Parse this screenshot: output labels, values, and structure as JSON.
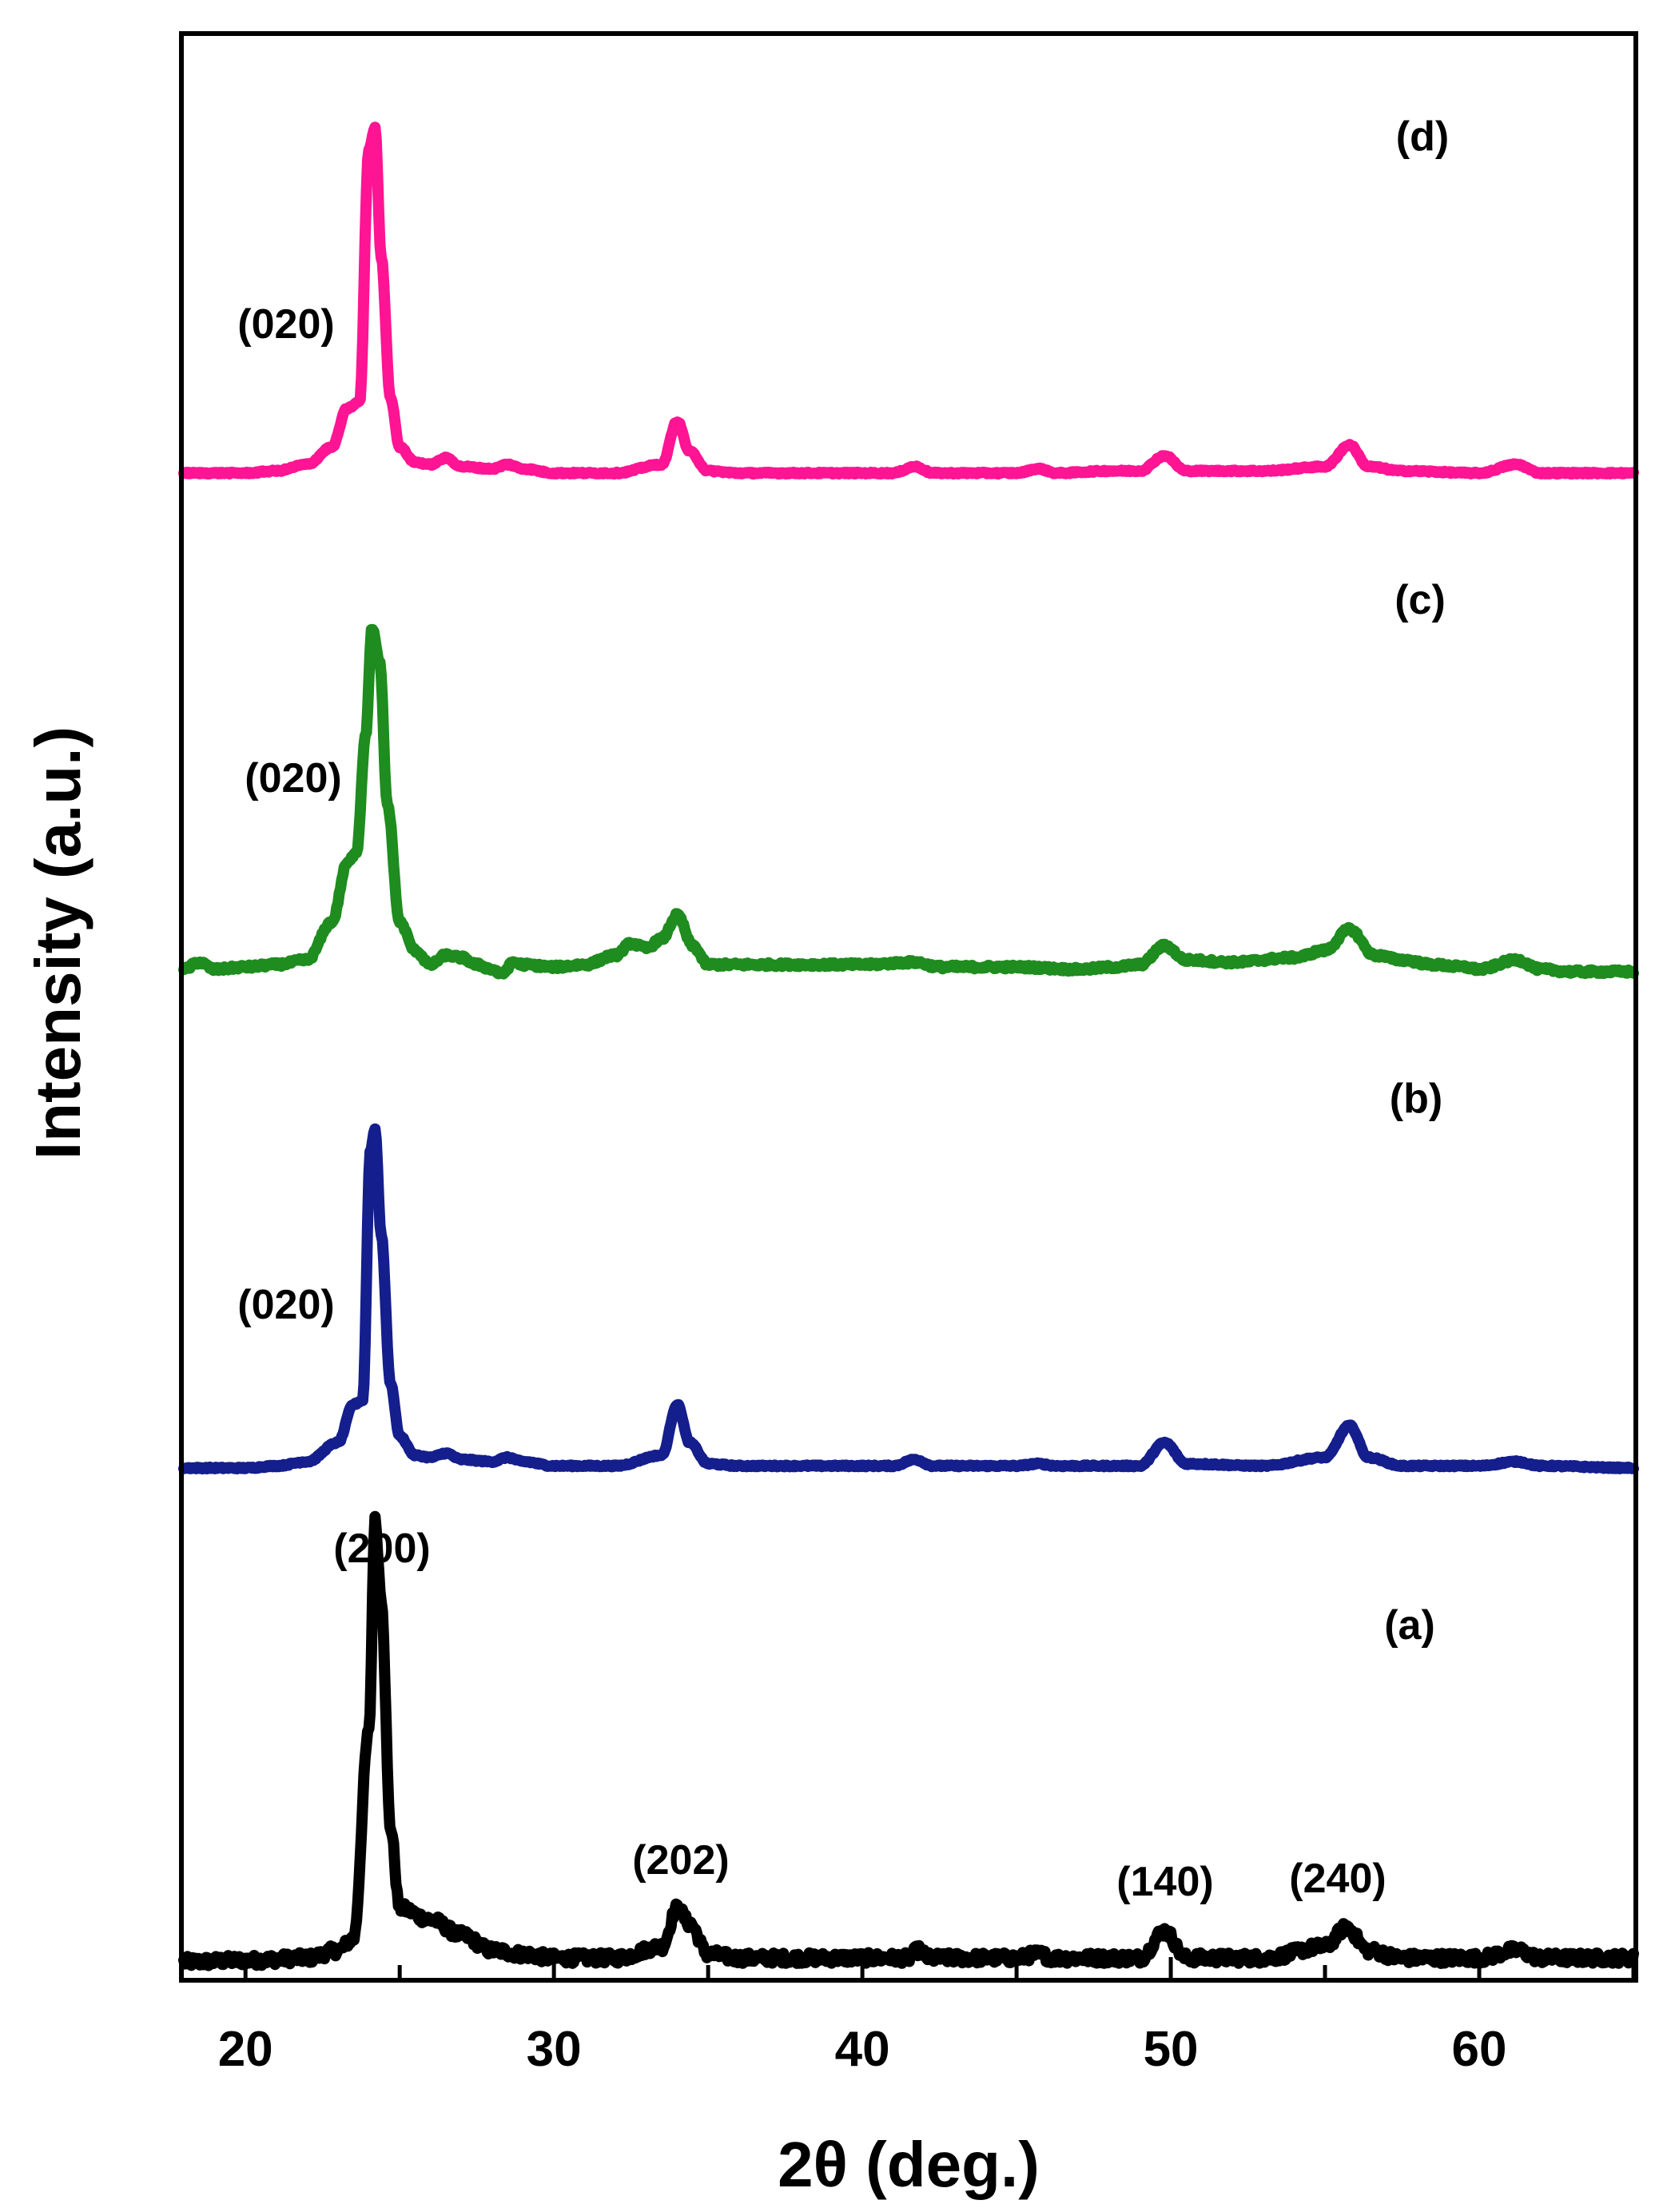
{
  "chart_data": {
    "type": "line",
    "title": "",
    "xlabel": "2θ (deg.)",
    "ylabel": "Intensity (a.u.)",
    "xlim": [
      18,
      65
    ],
    "x_ticks": [
      20,
      30,
      40,
      50,
      60
    ],
    "x_tick_labels": [
      "20",
      "30",
      "40",
      "50",
      "60"
    ],
    "grid": false,
    "legend": "none",
    "series": [
      {
        "name": "(a)",
        "color": "#000000",
        "noise": 1.4,
        "points": [
          [
            18,
            0
          ],
          [
            20,
            0.4
          ],
          [
            22,
            1
          ],
          [
            23,
            3
          ],
          [
            23.5,
            6
          ],
          [
            24,
            60
          ],
          [
            24.2,
            115
          ],
          [
            24.4,
            95
          ],
          [
            24.7,
            35
          ],
          [
            25,
            14
          ],
          [
            26,
            11
          ],
          [
            27,
            7
          ],
          [
            28,
            3
          ],
          [
            29,
            2
          ],
          [
            30,
            1
          ],
          [
            32,
            1
          ],
          [
            33.5,
            4
          ],
          [
            34,
            14
          ],
          [
            34.4,
            10
          ],
          [
            35,
            2
          ],
          [
            36,
            1
          ],
          [
            40,
            1
          ],
          [
            41.5,
            1
          ],
          [
            41.8,
            3
          ],
          [
            42.2,
            1
          ],
          [
            45,
            1
          ],
          [
            45.7,
            2
          ],
          [
            46.2,
            1
          ],
          [
            49,
            1
          ],
          [
            49.8,
            8
          ],
          [
            50.5,
            1
          ],
          [
            53,
            1
          ],
          [
            55,
            4
          ],
          [
            55.7,
            9
          ],
          [
            56.4,
            3
          ],
          [
            57.5,
            1
          ],
          [
            60,
            1
          ],
          [
            61.2,
            3
          ],
          [
            62,
            1
          ],
          [
            65,
            1
          ]
        ]
      },
      {
        "name": "(b)",
        "color": "#141e8c",
        "noise": 0.4,
        "points": [
          [
            18,
            0
          ],
          [
            20,
            0
          ],
          [
            21,
            1
          ],
          [
            22,
            3
          ],
          [
            23,
            12
          ],
          [
            23.5,
            30
          ],
          [
            23.8,
            32
          ],
          [
            24.05,
            150
          ],
          [
            24.2,
            160
          ],
          [
            24.4,
            110
          ],
          [
            24.7,
            40
          ],
          [
            25,
            15
          ],
          [
            25.5,
            6
          ],
          [
            26,
            5
          ],
          [
            26.5,
            7
          ],
          [
            27,
            4
          ],
          [
            28,
            3
          ],
          [
            28.5,
            5
          ],
          [
            29,
            3
          ],
          [
            30,
            1
          ],
          [
            32,
            1
          ],
          [
            33.5,
            6
          ],
          [
            34,
            30
          ],
          [
            34.4,
            12
          ],
          [
            35,
            2
          ],
          [
            36,
            1
          ],
          [
            41,
            1
          ],
          [
            41.7,
            4
          ],
          [
            42.3,
            1
          ],
          [
            45,
            1
          ],
          [
            45.7,
            2
          ],
          [
            46.3,
            1
          ],
          [
            49,
            1
          ],
          [
            49.8,
            12
          ],
          [
            50.5,
            2
          ],
          [
            53,
            1
          ],
          [
            55,
            5
          ],
          [
            55.8,
            20
          ],
          [
            56.4,
            5
          ],
          [
            57.5,
            1
          ],
          [
            60,
            1
          ],
          [
            61.2,
            3
          ],
          [
            62,
            1
          ],
          [
            65,
            0
          ]
        ]
      },
      {
        "name": "(c)",
        "color": "#1e8c1e",
        "noise": 0.8,
        "points": [
          [
            18,
            0
          ],
          [
            18.5,
            3
          ],
          [
            19,
            0
          ],
          [
            20,
            1
          ],
          [
            21,
            2
          ],
          [
            22,
            4
          ],
          [
            22.8,
            20
          ],
          [
            23.3,
            45
          ],
          [
            23.6,
            50
          ],
          [
            23.9,
            100
          ],
          [
            24.1,
            145
          ],
          [
            24.35,
            130
          ],
          [
            24.6,
            70
          ],
          [
            25,
            20
          ],
          [
            25.5,
            8
          ],
          [
            26,
            2
          ],
          [
            26.5,
            6
          ],
          [
            27,
            5
          ],
          [
            27.5,
            2
          ],
          [
            28,
            0
          ],
          [
            28.3,
            -2
          ],
          [
            28.7,
            3
          ],
          [
            29,
            2
          ],
          [
            30,
            1
          ],
          [
            31,
            2
          ],
          [
            32,
            6
          ],
          [
            32.5,
            11
          ],
          [
            33,
            9
          ],
          [
            33.5,
            13
          ],
          [
            34,
            23
          ],
          [
            34.5,
            10
          ],
          [
            35,
            2
          ],
          [
            36,
            2
          ],
          [
            40,
            2
          ],
          [
            41.7,
            3
          ],
          [
            42.5,
            1
          ],
          [
            45,
            1
          ],
          [
            47,
            0
          ],
          [
            48.2,
            1
          ],
          [
            49,
            2
          ],
          [
            49.8,
            10
          ],
          [
            50.5,
            4
          ],
          [
            52,
            3
          ],
          [
            54,
            5
          ],
          [
            55,
            8
          ],
          [
            55.8,
            17
          ],
          [
            56.6,
            6
          ],
          [
            57.5,
            4
          ],
          [
            58.5,
            2
          ],
          [
            59.5,
            1
          ],
          [
            60,
            0
          ],
          [
            61.2,
            4
          ],
          [
            62,
            0
          ],
          [
            63,
            -1
          ],
          [
            65,
            -1
          ]
        ]
      },
      {
        "name": "(d)",
        "color": "#ff1493",
        "noise": 0.4,
        "points": [
          [
            18,
            0
          ],
          [
            20,
            0
          ],
          [
            21,
            1
          ],
          [
            22,
            4
          ],
          [
            22.8,
            12
          ],
          [
            23.3,
            30
          ],
          [
            23.7,
            33
          ],
          [
            24,
            150
          ],
          [
            24.2,
            160
          ],
          [
            24.4,
            100
          ],
          [
            24.7,
            35
          ],
          [
            25,
            12
          ],
          [
            25.5,
            5
          ],
          [
            26,
            4
          ],
          [
            26.5,
            7
          ],
          [
            27,
            3
          ],
          [
            28,
            2
          ],
          [
            28.5,
            4
          ],
          [
            29,
            2
          ],
          [
            30,
            0
          ],
          [
            32,
            0
          ],
          [
            33.5,
            4
          ],
          [
            34,
            24
          ],
          [
            34.4,
            10
          ],
          [
            35,
            1
          ],
          [
            36,
            0
          ],
          [
            41,
            0
          ],
          [
            41.7,
            3
          ],
          [
            42.3,
            0
          ],
          [
            45,
            0
          ],
          [
            45.7,
            2
          ],
          [
            46.3,
            0
          ],
          [
            48,
            1
          ],
          [
            49,
            1
          ],
          [
            49.8,
            8
          ],
          [
            50.5,
            1
          ],
          [
            53,
            1
          ],
          [
            55,
            3
          ],
          [
            55.8,
            13
          ],
          [
            56.4,
            3
          ],
          [
            57.5,
            1
          ],
          [
            60,
            0
          ],
          [
            61.2,
            4
          ],
          [
            62,
            0
          ],
          [
            65,
            0
          ]
        ]
      }
    ],
    "annotations": {
      "peaks_a": [
        "(200)",
        "(202)",
        "(140)",
        "(240)"
      ],
      "peaks_020": [
        "(020)",
        "(020)",
        "(020)"
      ],
      "curve_labels": [
        "(a)",
        "(b)",
        "(c)",
        "(d)"
      ]
    }
  }
}
